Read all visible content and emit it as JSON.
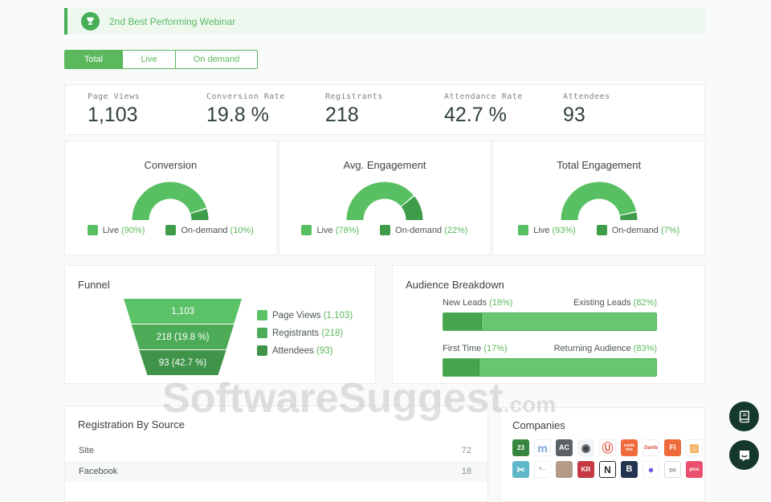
{
  "banner": {
    "icon": "trophy-icon",
    "text": "2nd Best Performing Webinar"
  },
  "tabs": [
    {
      "label": "Total",
      "active": true
    },
    {
      "label": "Live",
      "active": false
    },
    {
      "label": "On demand",
      "active": false
    }
  ],
  "stats": [
    {
      "label": "Page Views",
      "value": "1,103"
    },
    {
      "label": "Conversion Rate",
      "value": "19.8 %"
    },
    {
      "label": "Registrants",
      "value": "218"
    },
    {
      "label": "Attendance Rate",
      "value": "42.7 %"
    },
    {
      "label": "Attendees",
      "value": "93"
    }
  ],
  "chart_data": [
    {
      "type": "gauge",
      "title": "Conversion",
      "unit": "%",
      "series": [
        {
          "name": "Live",
          "value": 90,
          "color": "#58bf63"
        },
        {
          "name": "On-demand",
          "value": 10,
          "color": "#3f9d4a"
        }
      ]
    },
    {
      "type": "gauge",
      "title": "Avg. Engagement",
      "unit": "%",
      "series": [
        {
          "name": "Live",
          "value": 78,
          "color": "#58bf63"
        },
        {
          "name": "On-demand",
          "value": 22,
          "color": "#3f9d4a"
        }
      ]
    },
    {
      "type": "gauge",
      "title": "Total Engagement",
      "unit": "%",
      "series": [
        {
          "name": "Live",
          "value": 93,
          "color": "#58bf63"
        },
        {
          "name": "On-demand",
          "value": 7,
          "color": "#3f9d4a"
        }
      ]
    },
    {
      "type": "funnel",
      "title": "Funnel",
      "stages": [
        {
          "label": "Page Views",
          "value": 1103,
          "legend_value": "1,103",
          "bar_text": "1,103",
          "color": "#5cc268"
        },
        {
          "label": "Registrants",
          "value": 218,
          "legend_value": "218",
          "bar_text": "218 (19.8 %)",
          "color": "#4cab57"
        },
        {
          "label": "Attendees",
          "value": 93,
          "legend_value": "93",
          "bar_text": "93 (42.7 %)",
          "color": "#3f9449"
        }
      ]
    },
    {
      "type": "bar",
      "title": "Audience Breakdown",
      "bars": [
        {
          "left_label": "New Leads",
          "left_pct": 18,
          "right_label": "Existing Leads",
          "right_pct": 82
        },
        {
          "left_label": "First Time",
          "left_pct": 17,
          "right_label": "Returning Audience",
          "right_pct": 83
        }
      ]
    },
    {
      "type": "table",
      "title": "Registration By Source",
      "rows": [
        {
          "source": "Site",
          "count": 72
        },
        {
          "source": "Facebook",
          "count": 18
        }
      ]
    }
  ],
  "companies": {
    "title": "Companies",
    "logos": [
      {
        "name": "twentythree",
        "text": "23",
        "bg": "#38853f",
        "fg": "#ffffff",
        "fs": 8
      },
      {
        "name": "meetup",
        "text": "m",
        "bg": "#ffffff",
        "fg": "#7aa2d8",
        "fs": 14,
        "bd": "#eeeeee"
      },
      {
        "name": "ac",
        "text": "AC",
        "bg": "#5b6165",
        "fg": "#ffffff",
        "fs": 9
      },
      {
        "name": "robot",
        "text": "◉",
        "bg": "#f3f4f5",
        "fg": "#3a4046",
        "fs": 13
      },
      {
        "name": "u-shield",
        "text": "Ⓤ",
        "bg": "#ffffff",
        "fg": "#e05843",
        "fs": 14,
        "bd": "#eeeeee"
      },
      {
        "name": "conferize",
        "text": "confe rize",
        "bg": "#ee6a3a",
        "fg": "#ffffff",
        "fs": 5
      },
      {
        "name": "script-wordmark",
        "text": "Danfa",
        "bg": "#ffffff",
        "fg": "#d2453a",
        "fs": 6,
        "bd": "#eeeeee",
        "italic": true
      },
      {
        "name": "fi",
        "text": "FI",
        "bg": "#ee6a3a",
        "fg": "#ffffff",
        "fs": 9
      },
      {
        "name": "weave",
        "text": "▨",
        "bg": "#ffffff",
        "fg": "#efa03d",
        "fs": 13,
        "bd": "#eeeeee"
      },
      {
        "name": "scissors",
        "text": "✂",
        "bg": "#5fb8ca",
        "fg": "#ffffff",
        "fs": 12
      },
      {
        "name": "small-wordmark",
        "text": "K…",
        "bg": "#ffffff",
        "fg": "#9aa0a3",
        "fs": 5,
        "bd": "#f0f0f0"
      },
      {
        "name": "person-avatar",
        "text": "",
        "bg": "#b59b87",
        "fg": "#ffffff",
        "fs": 8
      },
      {
        "name": "kr",
        "text": "KR",
        "bg": "#c53a42",
        "fg": "#ffffff",
        "fs": 8
      },
      {
        "name": "n-mark",
        "text": "N",
        "bg": "#ffffff",
        "fg": "#23282d",
        "fs": 12,
        "bd": "#23282d"
      },
      {
        "name": "b-mark",
        "text": "B",
        "bg": "#233450",
        "fg": "#ffffff",
        "fs": 11
      },
      {
        "name": "purple-bubble",
        "text": "●",
        "bg": "#ffffff",
        "fg": "#7c5ce8",
        "fs": 13,
        "bd": "#f0f0f0"
      },
      {
        "name": "infinity-badge",
        "text": "∞",
        "bg": "#ffffff",
        "fg": "#8e9498",
        "fs": 13,
        "bd": "#d8dbdd"
      },
      {
        "name": "pico",
        "text": "pico",
        "bg": "#e8506e",
        "fg": "#ffffff",
        "fs": 6
      }
    ]
  },
  "watermark": {
    "text": "SoftwareSuggest",
    "suffix": ".com"
  },
  "colors": {
    "accent": "#5cb85c",
    "banner_bg": "#eef8ef",
    "gauge_live": "#58bf63",
    "gauge_ondemand": "#3f9d4a",
    "fab_bg": "#15382c"
  }
}
